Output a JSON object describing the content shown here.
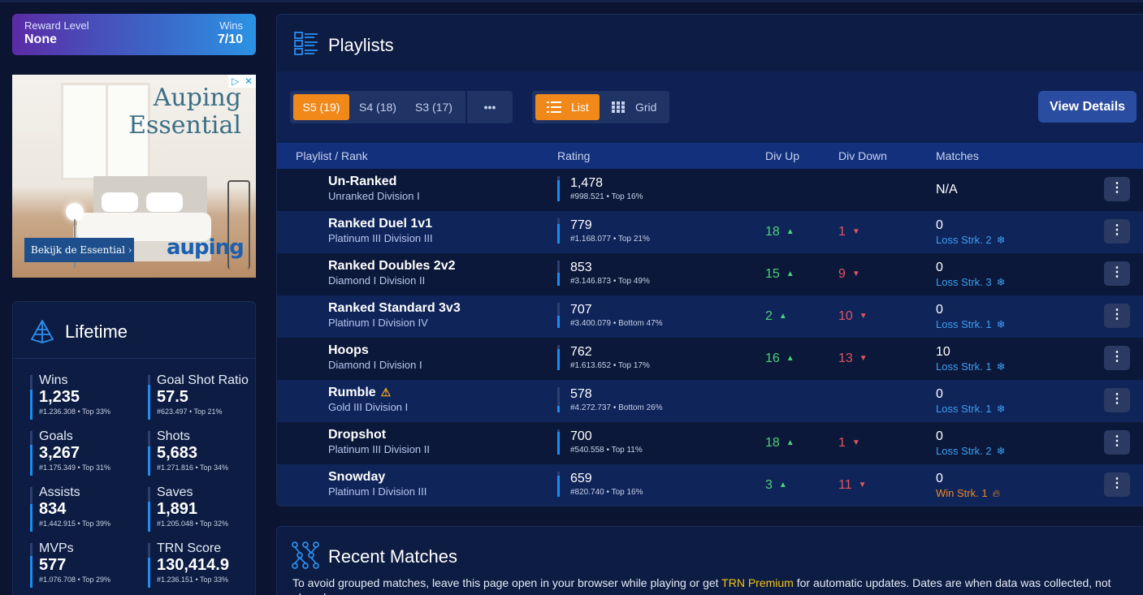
{
  "reward": {
    "level_label": "Reward Level",
    "level_value": "None",
    "wins_label": "Wins",
    "wins_value": "7/10"
  },
  "ad": {
    "headline_line1": "Auping",
    "headline_line2": "Essential",
    "cta": "Bekijk de Essential ›",
    "logo": "auping",
    "adchoices_icons": [
      "adchoices-icon",
      "close-icon"
    ]
  },
  "lifetime": {
    "title": "Lifetime",
    "stats": [
      {
        "name": "Wins",
        "value": "1,235",
        "rank": "#1.236.308 • Top 33%",
        "fill": 0.67
      },
      {
        "name": "Goal Shot Ratio",
        "value": "57.5",
        "rank": "#623.497 • Top 21%",
        "fill": 0.79
      },
      {
        "name": "Goals",
        "value": "3,267",
        "rank": "#1.175.349 • Top 31%",
        "fill": 0.69
      },
      {
        "name": "Shots",
        "value": "5,683",
        "rank": "#1.271.816 • Top 34%",
        "fill": 0.66
      },
      {
        "name": "Assists",
        "value": "834",
        "rank": "#1.442.915 • Top 39%",
        "fill": 0.61
      },
      {
        "name": "Saves",
        "value": "1,891",
        "rank": "#1.205.048 • Top 32%",
        "fill": 0.68
      },
      {
        "name": "MVPs",
        "value": "577",
        "rank": "#1.076.708 • Top 29%",
        "fill": 0.71
      },
      {
        "name": "TRN Score",
        "value": "130,414.9",
        "rank": "#1.236.151 • Top 33%",
        "fill": 0.67
      }
    ]
  },
  "playlists": {
    "title": "Playlists",
    "seasons": [
      "S5 (19)",
      "S4 (18)",
      "S3 (17)"
    ],
    "more_label": "•••",
    "view_list": "List",
    "view_grid": "Grid",
    "view_details": "View Details",
    "columns": [
      "Playlist / Rank",
      "Rating",
      "Div Up",
      "Div Down",
      "Matches"
    ],
    "rows": [
      {
        "name": "Un-Ranked",
        "division": "Unranked Division I",
        "rating": "1,478",
        "rank": "#998.521 • Top 16%",
        "fill": 0.84,
        "div_up": "",
        "div_down": "",
        "matches": "N/A",
        "streak": "",
        "streak_type": ""
      },
      {
        "name": "Ranked Duel 1v1",
        "division": "Platinum III Division III",
        "rating": "779",
        "rank": "#1.168.077 • Top 21%",
        "fill": 0.79,
        "div_up": "18",
        "div_down": "1",
        "matches": "0",
        "streak": "Loss Strk. 2",
        "streak_type": "loss"
      },
      {
        "name": "Ranked Doubles 2v2",
        "division": "Diamond I Division II",
        "rating": "853",
        "rank": "#3.146.873 • Top 49%",
        "fill": 0.51,
        "div_up": "15",
        "div_down": "9",
        "matches": "0",
        "streak": "Loss Strk. 3",
        "streak_type": "loss"
      },
      {
        "name": "Ranked Standard 3v3",
        "division": "Platinum I Division IV",
        "rating": "707",
        "rank": "#3.400.079 • Bottom 47%",
        "fill": 0.47,
        "div_up": "2",
        "div_down": "10",
        "matches": "0",
        "streak": "Loss Strk. 1",
        "streak_type": "loss"
      },
      {
        "name": "Hoops",
        "division": "Diamond I Division I",
        "rating": "762",
        "rank": "#1.613.652 • Top 17%",
        "fill": 0.83,
        "div_up": "16",
        "div_down": "13",
        "matches": "10",
        "streak": "Loss Strk. 1",
        "streak_type": "loss"
      },
      {
        "name": "Rumble",
        "division": "Gold III Division I",
        "rating": "578",
        "rank": "#4.272.737 • Bottom 26%",
        "fill": 0.26,
        "div_up": "",
        "div_down": "",
        "matches": "0",
        "streak": "Loss Strk. 1",
        "streak_type": "loss",
        "warning": true
      },
      {
        "name": "Dropshot",
        "division": "Platinum III Division II",
        "rating": "700",
        "rank": "#540.558 • Top 11%",
        "fill": 0.89,
        "div_up": "18",
        "div_down": "1",
        "matches": "0",
        "streak": "Loss Strk. 2",
        "streak_type": "loss"
      },
      {
        "name": "Snowday",
        "division": "Platinum I Division III",
        "rating": "659",
        "rank": "#820.740 • Top 16%",
        "fill": 0.84,
        "div_up": "3",
        "div_down": "11",
        "matches": "0",
        "streak": "Win Strk. 1",
        "streak_type": "win"
      }
    ]
  },
  "recent": {
    "title": "Recent Matches",
    "note_before": "To avoid grouped matches, leave this page open in your browser while playing or get ",
    "note_link": "TRN Premium",
    "note_after": " for automatic updates. Dates are when data was collected, not played."
  },
  "colors": {
    "accent": "#f0891a",
    "up": "#4fd07a",
    "down": "#e25561",
    "loss_streak": "#3e9ef3",
    "win_streak": "#f08a24",
    "bar": "#1e8cf0"
  }
}
